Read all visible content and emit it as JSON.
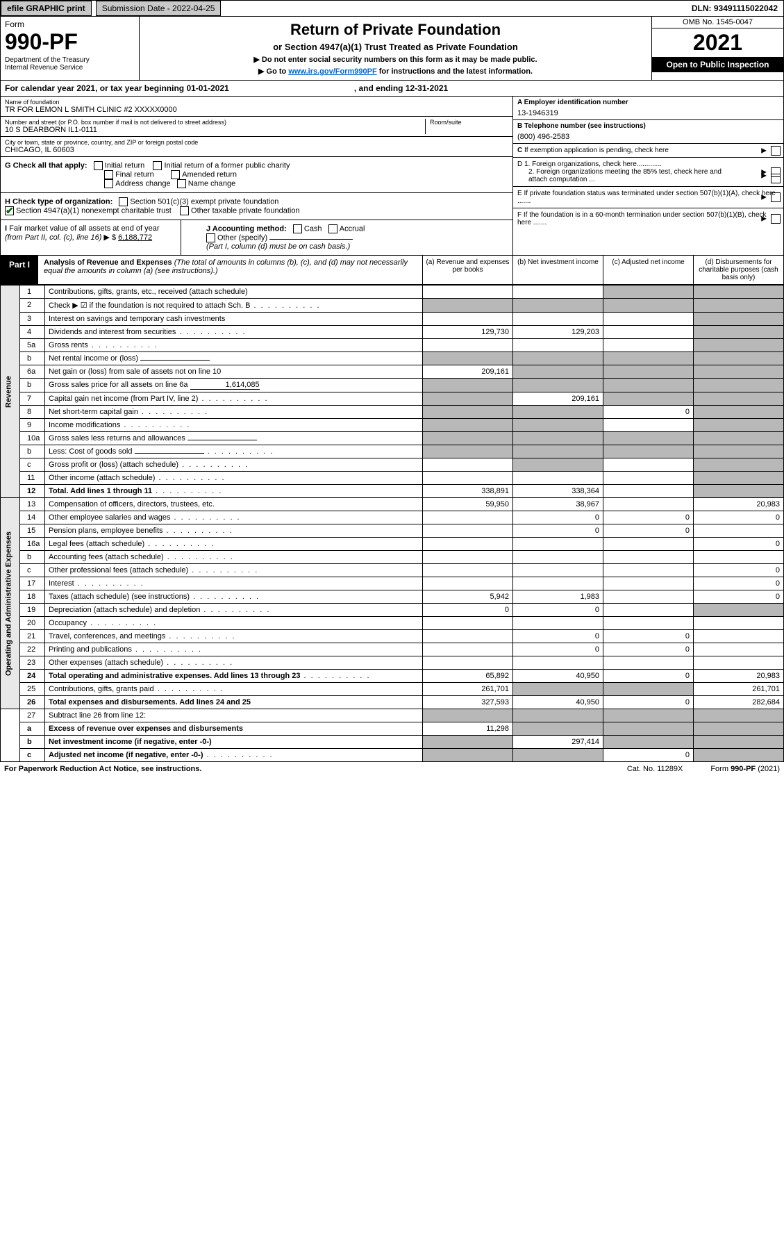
{
  "topbar": {
    "efile": "efile GRAPHIC print",
    "submission_label": "Submission Date - 2022-04-25",
    "dln": "DLN: 93491115022042"
  },
  "header": {
    "form_word": "Form",
    "form_no": "990-PF",
    "dept": "Department of the Treasury\nInternal Revenue Service",
    "title": "Return of Private Foundation",
    "subtitle": "or Section 4947(a)(1) Trust Treated as Private Foundation",
    "instr1": "▶ Do not enter social security numbers on this form as it may be made public.",
    "instr2_pre": "▶ Go to ",
    "instr2_link": "www.irs.gov/Form990PF",
    "instr2_post": " for instructions and the latest information.",
    "omb": "OMB No. 1545-0047",
    "year": "2021",
    "open": "Open to Public Inspection"
  },
  "calyear": {
    "pre": "For calendar year 2021, or tax year beginning 01-01-2021",
    "mid": ", and ending 12-31-2021"
  },
  "id": {
    "name_lbl": "Name of foundation",
    "name": "TR FOR LEMON L SMITH CLINIC #2 XXXXX0000",
    "addr_lbl": "Number and street (or P.O. box number if mail is not delivered to street address)",
    "addr": "10 S DEARBORN IL1-0111",
    "room_lbl": "Room/suite",
    "city_lbl": "City or town, state or province, country, and ZIP or foreign postal code",
    "city": "CHICAGO, IL  60603",
    "a_lbl": "A Employer identification number",
    "a_val": "13-1946319",
    "b_lbl": "B Telephone number (see instructions)",
    "b_val": "(800) 496-2583",
    "c_lbl": "C If exemption application is pending, check here",
    "d1": "D 1. Foreign organizations, check here.............",
    "d2": "2. Foreign organizations meeting the 85% test, check here and attach computation ...",
    "e": "E  If private foundation status was terminated under section 507(b)(1)(A), check here .......",
    "f": "F  If the foundation is in a 60-month termination under section 507(b)(1)(B), check here .......",
    "g_lbl": "G Check all that apply:",
    "g_opts": [
      "Initial return",
      "Initial return of a former public charity",
      "Final return",
      "Amended return",
      "Address change",
      "Name change"
    ],
    "h_lbl": "H Check type of organization:",
    "h_opts": [
      "Section 501(c)(3) exempt private foundation",
      "Section 4947(a)(1) nonexempt charitable trust",
      "Other taxable private foundation"
    ],
    "i_lbl": "I Fair market value of all assets at end of year (from Part II, col. (c), line 16)",
    "i_val": "6,188,772",
    "j_lbl": "J Accounting method:",
    "j_opts": [
      "Cash",
      "Accrual"
    ],
    "j_other": "Other (specify)",
    "j_note": "(Part I, column (d) must be on cash basis.)"
  },
  "part1": {
    "tag": "Part I",
    "title": "Analysis of Revenue and Expenses",
    "title_note": "(The total of amounts in columns (b), (c), and (d) may not necessarily equal the amounts in column (a) (see instructions).)",
    "cols": {
      "a": "(a)   Revenue and expenses per books",
      "b": "(b)   Net investment income",
      "c": "(c)   Adjusted net income",
      "d": "(d)   Disbursements for charitable purposes (cash basis only)"
    }
  },
  "sections": {
    "revenue": "Revenue",
    "expenses": "Operating and Administrative Expenses"
  },
  "rows": [
    {
      "n": "1",
      "d": "Contributions, gifts, grants, etc., received (attach schedule)",
      "a": "",
      "b": "",
      "c": "s",
      "ds": "s"
    },
    {
      "n": "2",
      "d": "Check ▶ ☑ if the foundation is not required to attach Sch. B",
      "dots": true,
      "a": "s",
      "b": "s",
      "c": "s",
      "ds": "s",
      "bold_not": true
    },
    {
      "n": "3",
      "d": "Interest on savings and temporary cash investments",
      "a": "",
      "b": "",
      "c": "",
      "ds": "s"
    },
    {
      "n": "4",
      "d": "Dividends and interest from securities",
      "dots": true,
      "a": "129,730",
      "b": "129,203",
      "c": "",
      "ds": "s"
    },
    {
      "n": "5a",
      "d": "Gross rents",
      "dots": true,
      "a": "",
      "b": "",
      "c": "",
      "ds": "s"
    },
    {
      "n": "b",
      "d": "Net rental income or (loss)",
      "inline": "",
      "a": "s",
      "b": "s",
      "c": "s",
      "ds": "s"
    },
    {
      "n": "6a",
      "d": "Net gain or (loss) from sale of assets not on line 10",
      "a": "209,161",
      "b": "s",
      "c": "s",
      "ds": "s"
    },
    {
      "n": "b",
      "d": "Gross sales price for all assets on line 6a",
      "inline": "1,614,085",
      "a": "s",
      "b": "s",
      "c": "s",
      "ds": "s"
    },
    {
      "n": "7",
      "d": "Capital gain net income (from Part IV, line 2)",
      "dots": true,
      "a": "s",
      "b": "209,161",
      "c": "s",
      "ds": "s"
    },
    {
      "n": "8",
      "d": "Net short-term capital gain",
      "dots": true,
      "a": "s",
      "b": "s",
      "c": "0",
      "ds": "s"
    },
    {
      "n": "9",
      "d": "Income modifications",
      "dots": true,
      "a": "s",
      "b": "s",
      "c": "",
      "ds": "s"
    },
    {
      "n": "10a",
      "d": "Gross sales less returns and allowances",
      "inline": "",
      "a": "s",
      "b": "s",
      "c": "s",
      "ds": "s"
    },
    {
      "n": "b",
      "d": "Less: Cost of goods sold",
      "dots": true,
      "inline": "",
      "a": "s",
      "b": "s",
      "c": "s",
      "ds": "s"
    },
    {
      "n": "c",
      "d": "Gross profit or (loss) (attach schedule)",
      "dots": true,
      "a": "",
      "b": "s",
      "c": "",
      "ds": "s"
    },
    {
      "n": "11",
      "d": "Other income (attach schedule)",
      "dots": true,
      "a": "",
      "b": "",
      "c": "",
      "ds": "s"
    },
    {
      "n": "12",
      "d": "Total. Add lines 1 through 11",
      "dots": true,
      "bold": true,
      "a": "338,891",
      "b": "338,364",
      "c": "",
      "ds": "s"
    },
    {
      "n": "13",
      "d": "Compensation of officers, directors, trustees, etc.",
      "a": "59,950",
      "b": "38,967",
      "c": "",
      "ds": "20,983"
    },
    {
      "n": "14",
      "d": "Other employee salaries and wages",
      "dots": true,
      "a": "",
      "b": "0",
      "c": "0",
      "ds": "0"
    },
    {
      "n": "15",
      "d": "Pension plans, employee benefits",
      "dots": true,
      "a": "",
      "b": "0",
      "c": "0",
      "ds": ""
    },
    {
      "n": "16a",
      "d": "Legal fees (attach schedule)",
      "dots": true,
      "a": "",
      "b": "",
      "c": "",
      "ds": "0"
    },
    {
      "n": "b",
      "d": "Accounting fees (attach schedule)",
      "dots": true,
      "a": "",
      "b": "",
      "c": "",
      "ds": ""
    },
    {
      "n": "c",
      "d": "Other professional fees (attach schedule)",
      "dots": true,
      "a": "",
      "b": "",
      "c": "",
      "ds": "0"
    },
    {
      "n": "17",
      "d": "Interest",
      "dots": true,
      "a": "",
      "b": "",
      "c": "",
      "ds": "0"
    },
    {
      "n": "18",
      "d": "Taxes (attach schedule) (see instructions)",
      "dots": true,
      "a": "5,942",
      "b": "1,983",
      "c": "",
      "ds": "0"
    },
    {
      "n": "19",
      "d": "Depreciation (attach schedule) and depletion",
      "dots": true,
      "a": "0",
      "b": "0",
      "c": "",
      "ds": "s"
    },
    {
      "n": "20",
      "d": "Occupancy",
      "dots": true,
      "a": "",
      "b": "",
      "c": "",
      "ds": ""
    },
    {
      "n": "21",
      "d": "Travel, conferences, and meetings",
      "dots": true,
      "a": "",
      "b": "0",
      "c": "0",
      "ds": ""
    },
    {
      "n": "22",
      "d": "Printing and publications",
      "dots": true,
      "a": "",
      "b": "0",
      "c": "0",
      "ds": ""
    },
    {
      "n": "23",
      "d": "Other expenses (attach schedule)",
      "dots": true,
      "a": "",
      "b": "",
      "c": "",
      "ds": ""
    },
    {
      "n": "24",
      "d": "Total operating and administrative expenses. Add lines 13 through 23",
      "dots": true,
      "bold": true,
      "a": "65,892",
      "b": "40,950",
      "c": "0",
      "ds": "20,983"
    },
    {
      "n": "25",
      "d": "Contributions, gifts, grants paid",
      "dots": true,
      "a": "261,701",
      "b": "s",
      "c": "s",
      "ds": "261,701"
    },
    {
      "n": "26",
      "d": "Total expenses and disbursements. Add lines 24 and 25",
      "bold": true,
      "a": "327,593",
      "b": "40,950",
      "c": "0",
      "ds": "282,684"
    },
    {
      "n": "27",
      "d": "Subtract line 26 from line 12:",
      "a": "s",
      "b": "s",
      "c": "s",
      "ds": "s"
    },
    {
      "n": "a",
      "d": "Excess of revenue over expenses and disbursements",
      "bold": true,
      "a": "11,298",
      "b": "s",
      "c": "s",
      "ds": "s"
    },
    {
      "n": "b",
      "d": "Net investment income (if negative, enter -0-)",
      "bold": true,
      "a": "s",
      "b": "297,414",
      "c": "s",
      "ds": "s"
    },
    {
      "n": "c",
      "d": "Adjusted net income (if negative, enter -0-)",
      "dots": true,
      "bold": true,
      "a": "s",
      "b": "s",
      "c": "0",
      "ds": "s"
    }
  ],
  "footer": {
    "left": "For Paperwork Reduction Act Notice, see instructions.",
    "mid": "Cat. No. 11289X",
    "right": "Form 990-PF (2021)"
  },
  "colors": {
    "shaded": "#b8b8b8",
    "black": "#000000",
    "btn_bg": "#c8c8c8",
    "link": "#0066cc"
  }
}
